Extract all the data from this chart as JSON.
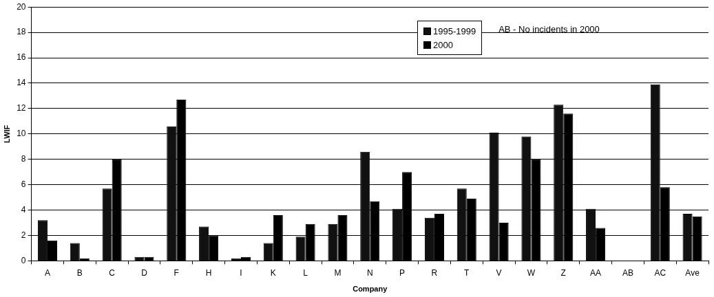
{
  "chart_data": {
    "type": "bar",
    "xlabel": "Company",
    "ylabel": "LWIF",
    "categories": [
      "A",
      "B",
      "C",
      "D",
      "F",
      "H",
      "I",
      "K",
      "L",
      "M",
      "N",
      "P",
      "R",
      "T",
      "V",
      "W",
      "Z",
      "AA",
      "AB",
      "AC",
      "Ave"
    ],
    "series": [
      {
        "name": "1995-1999",
        "color": "#111111",
        "values": [
          3.2,
          1.4,
          5.7,
          0.3,
          10.6,
          2.7,
          0.2,
          1.4,
          1.9,
          2.9,
          8.6,
          4.1,
          3.4,
          5.7,
          10.1,
          9.8,
          12.3,
          4.1,
          0,
          13.9,
          3.7
        ]
      },
      {
        "name": "2000",
        "color": "#000000",
        "values": [
          1.6,
          0.2,
          8.0,
          0.3,
          12.7,
          2.0,
          0.3,
          3.6,
          2.9,
          3.6,
          4.7,
          7.0,
          3.7,
          4.9,
          3.0,
          8.0,
          11.6,
          2.6,
          0,
          5.8,
          3.5
        ]
      }
    ],
    "ylim": [
      0,
      20
    ],
    "yticks": [
      0,
      2,
      4,
      6,
      8,
      10,
      12,
      14,
      16,
      18,
      20
    ],
    "grid": "y",
    "legend": "top right",
    "annotations": [
      "AB - No incidents in 2000"
    ]
  }
}
